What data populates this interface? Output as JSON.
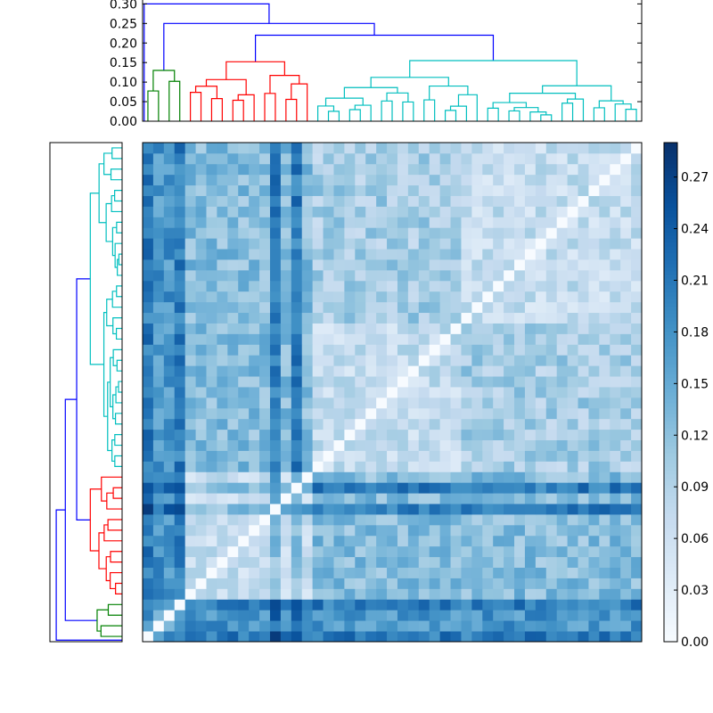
{
  "chart_data": [
    {
      "type": "dendrogram",
      "orientation": "top",
      "y_ticks": [
        "0.00",
        "0.05",
        "0.10",
        "0.15",
        "0.20",
        "0.25",
        "0.30"
      ],
      "ylim": [
        0,
        0.31
      ],
      "leaf_count": 47,
      "clusters": [
        {
          "color": "#008000",
          "leaves": [
            0,
            4
          ]
        },
        {
          "color": "#ff0000",
          "leaves": [
            4,
            16
          ]
        },
        {
          "color": "#00bfbf",
          "leaves": [
            16,
            47
          ]
        }
      ],
      "link_color": "#0000ff"
    },
    {
      "type": "dendrogram",
      "orientation": "left",
      "leaf_count": 47,
      "clusters": [
        {
          "color": "#008000",
          "leaves": [
            0,
            4
          ]
        },
        {
          "color": "#ff0000",
          "leaves": [
            4,
            16
          ]
        },
        {
          "color": "#00bfbf",
          "leaves": [
            16,
            47
          ]
        }
      ],
      "link_color": "#0000ff"
    },
    {
      "type": "heatmap",
      "rows": 47,
      "cols": 47,
      "diagonal": 0,
      "value_range": [
        0,
        0.29
      ],
      "colormap": "Blues",
      "colorbar": {
        "ticks": [
          "0.00",
          "0.03",
          "0.06",
          "0.09",
          "0.12",
          "0.15",
          "0.18",
          "0.21",
          "0.24",
          "0.27"
        ],
        "range": [
          0,
          0.29
        ]
      }
    }
  ]
}
